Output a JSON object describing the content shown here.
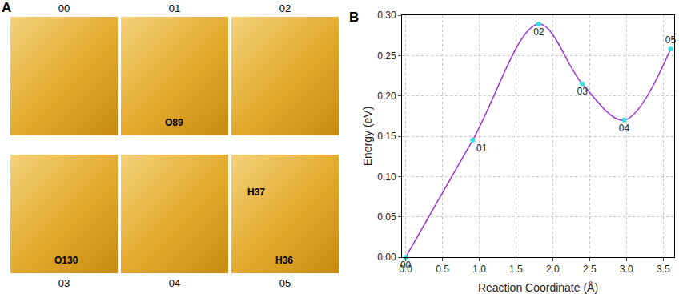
{
  "panel_labels": [
    "A",
    "B"
  ],
  "structure_frames": [
    {
      "label": "00",
      "atom_labels": []
    },
    {
      "label": "01",
      "atom_labels": [
        "O89"
      ]
    },
    {
      "label": "02",
      "atom_labels": []
    },
    {
      "label": "03",
      "atom_labels": [
        "O130"
      ]
    },
    {
      "label": "04",
      "atom_labels": []
    },
    {
      "label": "05",
      "atom_labels": [
        "H36",
        "H37"
      ]
    }
  ],
  "chart_data": {
    "type": "line",
    "x_label": "Reaction Coordinate (Å)",
    "y_label": "Energy (eV)",
    "x": [
      0,
      0.91,
      1.81,
      2.4,
      2.97,
      3.6
    ],
    "values": [
      0,
      0.145,
      0.289,
      0.215,
      0.17,
      0.258
    ],
    "point_labels": [
      "00",
      "01",
      "02",
      "03",
      "04",
      "05"
    ],
    "color": "#9b30d9",
    "marker_color": "#33e0e0",
    "marker": "circle",
    "xlim": [
      -0.05,
      3.65
    ],
    "xticks": [
      {
        "value": 0,
        "label": "0.0"
      },
      0.5,
      {
        "value": 1,
        "label": "1.0"
      },
      1.5,
      {
        "value": 2,
        "label": "2.0"
      },
      2.5,
      {
        "value": 3,
        "label": "3.0"
      },
      3.5
    ],
    "ylim": [
      0,
      0.3
    ],
    "yticks": [
      {
        "value": 0,
        "label": "0.00"
      },
      0.05,
      {
        "value": 0.1,
        "label": "0.10"
      },
      0.15,
      {
        "value": 0.2,
        "label": "0.20"
      },
      0.25,
      {
        "value": 0.3,
        "label": "0.30"
      }
    ],
    "grid": true
  }
}
